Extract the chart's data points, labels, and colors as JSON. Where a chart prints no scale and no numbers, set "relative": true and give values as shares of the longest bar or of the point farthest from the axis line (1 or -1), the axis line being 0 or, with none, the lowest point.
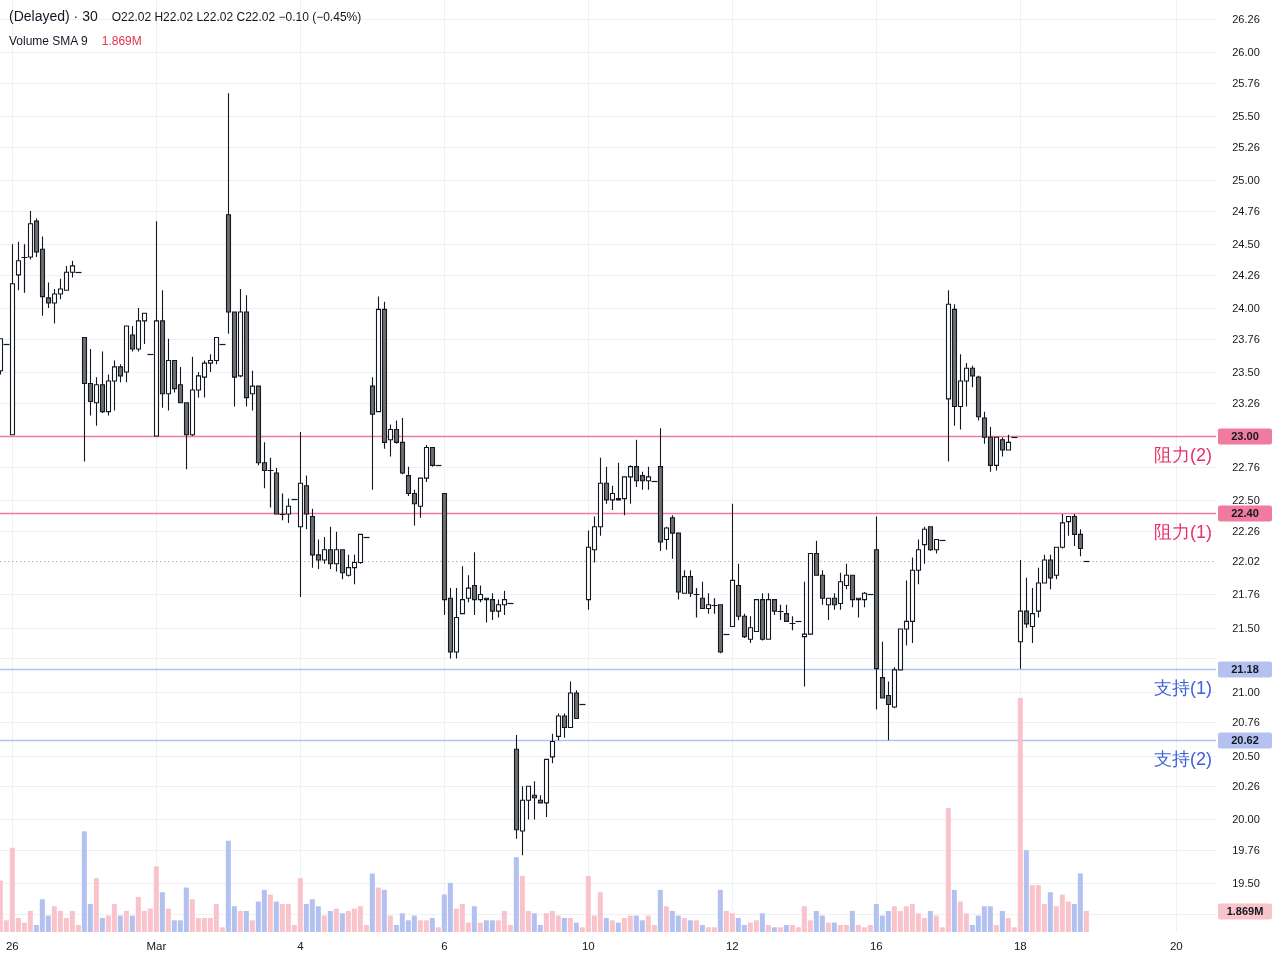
{
  "chart_data": [
    {
      "type": "candlestick",
      "title": "(Delayed) · 30",
      "annotations": [
        "O22.02 H22.02 L22.02 C22.02 −0.10 (−0.45%)",
        "23.00",
        "22.40",
        "21.18",
        "20.62"
      ],
      "categories": [
        null,
        null,
        "26",
        null,
        null,
        null,
        null,
        null,
        null,
        null,
        null,
        null,
        null,
        null,
        null,
        null,
        null,
        null,
        null,
        null,
        null,
        null,
        null,
        null,
        null,
        null,
        "Mar",
        null,
        null,
        null,
        null,
        null,
        null,
        null,
        null,
        null,
        null,
        null,
        null,
        null,
        null,
        null,
        null,
        null,
        null,
        null,
        null,
        null,
        null,
        null,
        "4",
        null,
        null,
        null,
        null,
        null,
        null,
        null,
        null,
        null,
        null,
        null,
        null,
        null,
        null,
        null,
        null,
        null,
        null,
        null,
        null,
        null,
        null,
        null,
        "6",
        null,
        null,
        null,
        null,
        null,
        null,
        null,
        null,
        null,
        null,
        null,
        null,
        null,
        null,
        null,
        null,
        null,
        null,
        null,
        null,
        null,
        null,
        null,
        "10",
        null,
        null,
        null,
        null,
        null,
        null,
        null,
        null,
        null,
        null,
        null,
        null,
        null,
        null,
        null,
        null,
        null,
        null,
        null,
        null,
        null,
        null,
        null,
        "12",
        null,
        null,
        null,
        null,
        null,
        null,
        null,
        null,
        null,
        null,
        null,
        null,
        null,
        null,
        null,
        null,
        null,
        null,
        null,
        null,
        null,
        null,
        null,
        "16",
        null,
        null,
        null,
        null,
        null,
        null,
        null,
        null,
        null,
        null,
        null,
        null,
        null,
        null,
        null,
        null,
        null,
        null,
        null,
        null,
        null,
        null,
        null,
        "18",
        null,
        null,
        null,
        null,
        null,
        null,
        null,
        null,
        null,
        null,
        null,
        null,
        null,
        null,
        null,
        null,
        null,
        null,
        null,
        null,
        null,
        null,
        null,
        null,
        null,
        "20",
        null,
        null,
        null,
        null,
        null,
        null
      ],
      "ohlc": [
        [
          23.51,
          23.76,
          23.48,
          23.76
        ],
        [
          23.72,
          23.72,
          23.72,
          23.72
        ],
        [
          23.01,
          24.5,
          23.01,
          24.19
        ],
        [
          24.26,
          24.52,
          24.14,
          24.37
        ],
        [
          24.4,
          24.5,
          24.12,
          24.4
        ],
        [
          24.4,
          24.76,
          24.38,
          24.66
        ],
        [
          24.68,
          24.7,
          24.4,
          24.44
        ],
        [
          24.46,
          24.56,
          23.94,
          24.09
        ],
        [
          24.08,
          24.2,
          24.0,
          24.04
        ],
        [
          24.04,
          24.15,
          23.88,
          24.11
        ],
        [
          24.11,
          24.23,
          24.07,
          24.15
        ],
        [
          24.14,
          24.33,
          24.14,
          24.28
        ],
        [
          24.28,
          24.37,
          24.24,
          24.33
        ],
        [
          24.28,
          24.28,
          24.28,
          24.28
        ],
        [
          23.77,
          23.77,
          22.8,
          23.41
        ],
        [
          23.41,
          23.68,
          23.16,
          23.27
        ],
        [
          23.26,
          23.46,
          23.08,
          23.4
        ],
        [
          23.4,
          23.66,
          23.18,
          23.19
        ],
        [
          23.19,
          23.48,
          23.16,
          23.43
        ],
        [
          23.43,
          23.59,
          23.2,
          23.54
        ],
        [
          23.54,
          23.56,
          23.42,
          23.47
        ],
        [
          23.5,
          23.86,
          23.42,
          23.86
        ],
        [
          23.79,
          23.86,
          23.66,
          23.68
        ],
        [
          23.68,
          24.0,
          23.66,
          23.9
        ],
        [
          23.9,
          23.96,
          23.72,
          23.96
        ],
        [
          23.64,
          23.64,
          23.64,
          23.64
        ],
        [
          23.0,
          24.68,
          23.0,
          23.9
        ],
        [
          23.9,
          24.14,
          23.22,
          23.33
        ],
        [
          23.33,
          23.76,
          23.2,
          23.59
        ],
        [
          23.59,
          23.59,
          23.34,
          23.37
        ],
        [
          23.4,
          23.54,
          23.26,
          23.26
        ],
        [
          23.26,
          23.26,
          22.74,
          23.01
        ],
        [
          23.01,
          23.62,
          23.0,
          23.36
        ],
        [
          23.36,
          23.5,
          23.3,
          23.47
        ],
        [
          23.46,
          23.59,
          23.3,
          23.57
        ],
        [
          23.57,
          23.64,
          23.5,
          23.59
        ],
        [
          23.59,
          23.77,
          23.56,
          23.77
        ],
        [
          23.72,
          23.72,
          23.72,
          23.72
        ],
        [
          24.73,
          25.68,
          23.8,
          23.97
        ],
        [
          23.97,
          23.97,
          23.23,
          23.46
        ],
        [
          23.47,
          24.15,
          23.46,
          23.97
        ],
        [
          23.97,
          24.1,
          23.23,
          23.3
        ],
        [
          23.33,
          23.51,
          23.2,
          23.39
        ],
        [
          23.39,
          23.39,
          22.77,
          22.79
        ],
        [
          22.79,
          22.95,
          22.59,
          22.73
        ],
        [
          22.73,
          22.83,
          22.44,
          22.73
        ],
        [
          22.71,
          22.75,
          22.39,
          22.39
        ],
        [
          22.39,
          22.55,
          22.34,
          22.39
        ],
        [
          22.39,
          22.51,
          22.32,
          22.45
        ],
        [
          22.51,
          22.51,
          22.51,
          22.51
        ],
        [
          22.29,
          23.03,
          21.74,
          22.63
        ],
        [
          22.61,
          22.69,
          22.27,
          22.39
        ],
        [
          22.37,
          22.43,
          21.97,
          22.07
        ],
        [
          22.07,
          22.19,
          21.96,
          22.03
        ],
        [
          22.03,
          22.21,
          22.0,
          22.11
        ],
        [
          22.11,
          22.29,
          21.96,
          22.0
        ],
        [
          22.0,
          22.25,
          21.94,
          22.11
        ],
        [
          22.11,
          22.11,
          21.88,
          21.93
        ],
        [
          21.91,
          22.07,
          21.9,
          21.97
        ],
        [
          21.97,
          22.07,
          21.84,
          22.01
        ],
        [
          22.01,
          22.23,
          22.0,
          22.23
        ],
        [
          22.21,
          22.21,
          22.21,
          22.21
        ],
        [
          23.39,
          23.46,
          22.58,
          23.17
        ],
        [
          23.19,
          24.09,
          23.19,
          23.99
        ],
        [
          23.99,
          24.05,
          22.9,
          22.95
        ],
        [
          22.97,
          23.09,
          22.84,
          23.05
        ],
        [
          23.05,
          23.12,
          22.94,
          22.95
        ],
        [
          22.95,
          23.14,
          22.7,
          22.71
        ],
        [
          22.69,
          22.76,
          22.53,
          22.55
        ],
        [
          22.55,
          22.58,
          22.3,
          22.47
        ],
        [
          22.45,
          22.67,
          22.36,
          22.67
        ],
        [
          22.67,
          22.93,
          22.64,
          22.91
        ],
        [
          22.91,
          22.91,
          22.76,
          22.77
        ],
        [
          22.77,
          22.77,
          22.77,
          22.77
        ],
        [
          22.55,
          22.55,
          21.6,
          21.72
        ],
        [
          21.73,
          21.81,
          21.26,
          21.31
        ],
        [
          21.31,
          21.81,
          21.26,
          21.58
        ],
        [
          21.61,
          21.98,
          21.61,
          21.72
        ],
        [
          21.73,
          21.91,
          21.7,
          21.81
        ],
        [
          21.83,
          22.09,
          21.6,
          21.72
        ],
        [
          21.72,
          21.83,
          21.7,
          21.76
        ],
        [
          21.73,
          21.73,
          21.54,
          21.72
        ],
        [
          21.72,
          21.77,
          21.56,
          21.63
        ],
        [
          21.63,
          21.72,
          21.58,
          21.68
        ],
        [
          21.68,
          21.79,
          21.6,
          21.72
        ],
        [
          21.69,
          21.69,
          21.69,
          21.69
        ],
        [
          20.55,
          20.66,
          19.85,
          19.92
        ],
        [
          19.91,
          20.26,
          19.72,
          20.15
        ],
        [
          20.15,
          20.26,
          20.0,
          20.26
        ],
        [
          20.19,
          20.3,
          20.0,
          20.17
        ],
        [
          20.15,
          20.19,
          20.13,
          20.13
        ],
        [
          20.13,
          20.47,
          20.02,
          20.47
        ],
        [
          20.49,
          20.67,
          20.44,
          20.61
        ],
        [
          20.65,
          20.83,
          20.62,
          20.81
        ],
        [
          20.81,
          20.83,
          20.64,
          20.72
        ],
        [
          20.72,
          21.08,
          20.72,
          20.99
        ],
        [
          20.99,
          21.01,
          20.79,
          20.79
        ],
        [
          20.9,
          20.9,
          20.9,
          20.9
        ],
        [
          21.72,
          22.26,
          21.64,
          22.13
        ],
        [
          22.11,
          22.37,
          22.01,
          22.29
        ],
        [
          22.29,
          22.83,
          22.22,
          22.63
        ],
        [
          22.63,
          22.76,
          22.47,
          22.5
        ],
        [
          22.5,
          22.61,
          22.42,
          22.55
        ],
        [
          22.51,
          22.79,
          22.5,
          22.5
        ],
        [
          22.51,
          22.68,
          22.38,
          22.68
        ],
        [
          22.68,
          22.77,
          22.47,
          22.76
        ],
        [
          22.76,
          22.97,
          22.6,
          22.65
        ],
        [
          22.69,
          22.72,
          22.58,
          22.65
        ],
        [
          22.65,
          22.76,
          22.58,
          22.68
        ],
        [
          22.65,
          22.65,
          22.65,
          22.65
        ],
        [
          22.76,
          23.06,
          22.1,
          22.17
        ],
        [
          22.19,
          22.29,
          22.11,
          22.28
        ],
        [
          22.36,
          22.38,
          22.04,
          22.24
        ],
        [
          22.24,
          22.24,
          21.72,
          21.78
        ],
        [
          21.77,
          21.95,
          21.77,
          21.9
        ],
        [
          21.9,
          21.95,
          21.74,
          21.77
        ],
        [
          21.76,
          21.81,
          21.58,
          21.76
        ],
        [
          21.73,
          21.86,
          21.65,
          21.65
        ],
        [
          21.65,
          21.77,
          21.61,
          21.68
        ],
        [
          21.68,
          21.73,
          21.61,
          21.68
        ],
        [
          21.68,
          21.68,
          21.3,
          21.31
        ],
        [
          21.45,
          21.45,
          21.45,
          21.45
        ],
        [
          21.51,
          22.47,
          21.51,
          21.87
        ],
        [
          21.83,
          22.0,
          21.56,
          21.59
        ],
        [
          21.59,
          21.61,
          21.42,
          21.43
        ],
        [
          21.41,
          21.59,
          21.38,
          21.5
        ],
        [
          21.47,
          21.72,
          21.47,
          21.72
        ],
        [
          21.72,
          21.77,
          21.4,
          21.41
        ],
        [
          21.41,
          21.77,
          21.41,
          21.72
        ],
        [
          21.72,
          21.72,
          21.6,
          21.63
        ],
        [
          21.63,
          21.68,
          21.56,
          21.63
        ],
        [
          21.61,
          21.68,
          21.55,
          21.55
        ],
        [
          21.54,
          21.59,
          21.48,
          21.54
        ],
        [
          21.55,
          21.55,
          21.55,
          21.55
        ],
        [
          21.43,
          21.86,
          21.04,
          21.45
        ],
        [
          21.45,
          22.08,
          21.45,
          22.08
        ],
        [
          22.08,
          22.18,
          21.91,
          21.91
        ],
        [
          21.91,
          21.95,
          21.68,
          21.73
        ],
        [
          21.68,
          21.73,
          21.56,
          21.73
        ],
        [
          21.73,
          21.77,
          21.64,
          21.68
        ],
        [
          21.69,
          21.93,
          21.64,
          21.86
        ],
        [
          21.83,
          22.0,
          21.8,
          21.91
        ],
        [
          21.91,
          21.91,
          21.66,
          21.72
        ],
        [
          21.72,
          21.73,
          21.58,
          21.73
        ],
        [
          21.72,
          21.78,
          21.66,
          21.77
        ],
        [
          21.76,
          21.76,
          21.76,
          21.76
        ],
        [
          22.11,
          22.37,
          20.86,
          21.18
        ],
        [
          21.11,
          21.39,
          20.95,
          20.95
        ],
        [
          20.97,
          21.08,
          20.62,
          20.9
        ],
        [
          20.88,
          21.19,
          20.87,
          21.17
        ],
        [
          21.17,
          21.49,
          21.17,
          21.49
        ],
        [
          21.49,
          21.87,
          21.36,
          21.55
        ],
        [
          21.55,
          22.05,
          21.38,
          21.95
        ],
        [
          21.95,
          22.19,
          21.84,
          22.11
        ],
        [
          22.15,
          22.29,
          22.0,
          22.27
        ],
        [
          22.29,
          22.29,
          22.1,
          22.11
        ],
        [
          22.11,
          22.19,
          22.08,
          22.19
        ],
        [
          22.19,
          22.19,
          22.19,
          22.19
        ],
        [
          23.29,
          24.14,
          22.8,
          24.03
        ],
        [
          23.99,
          24.03,
          23.08,
          23.23
        ],
        [
          23.23,
          23.64,
          23.05,
          23.43
        ],
        [
          23.43,
          23.57,
          23.23,
          23.53
        ],
        [
          23.53,
          23.55,
          23.38,
          23.47
        ],
        [
          23.46,
          23.47,
          23.12,
          23.15
        ],
        [
          23.14,
          23.19,
          22.94,
          22.99
        ],
        [
          22.99,
          23.07,
          22.72,
          22.77
        ],
        [
          22.77,
          22.99,
          22.73,
          22.99
        ],
        [
          22.97,
          22.99,
          22.84,
          22.89
        ],
        [
          22.89,
          23.01,
          22.89,
          22.95
        ],
        [
          22.99,
          22.99,
          22.99,
          22.99
        ],
        [
          21.39,
          22.03,
          21.18,
          21.63
        ],
        [
          21.63,
          21.89,
          21.5,
          21.53
        ],
        [
          21.51,
          21.81,
          21.38,
          21.61
        ],
        [
          21.63,
          21.97,
          21.58,
          21.85
        ],
        [
          21.85,
          22.07,
          21.85,
          22.03
        ],
        [
          22.03,
          22.07,
          21.8,
          21.89
        ],
        [
          21.91,
          22.13,
          21.88,
          22.13
        ],
        [
          22.13,
          22.39,
          22.12,
          22.32
        ],
        [
          22.33,
          22.37,
          22.22,
          22.37
        ],
        [
          22.37,
          22.39,
          22.14,
          22.23
        ],
        [
          22.23,
          22.27,
          22.06,
          22.12
        ],
        [
          22.02,
          22.02,
          22.02,
          22.02
        ],
        null,
        null,
        null,
        null,
        null,
        null,
        null,
        null,
        null,
        null,
        null,
        null,
        null,
        null,
        null,
        null,
        null,
        null,
        null,
        null,
        null
      ],
      "ylim": [
        19.12,
        26.41
      ],
      "yticks": [
        26.26,
        {
          "value": 26,
          "label": "26.00"
        },
        25.76,
        {
          "value": 25.5,
          "label": "25.50"
        },
        25.26,
        {
          "value": 25,
          "label": "25.00"
        },
        24.76,
        {
          "value": 24.5,
          "label": "24.50"
        },
        24.26,
        {
          "value": 24,
          "label": "24.00"
        },
        23.76,
        {
          "value": 23.5,
          "label": "23.50"
        },
        23.26,
        22.76,
        {
          "value": 22.5,
          "label": "22.50"
        },
        22.26,
        22.02,
        21.76,
        {
          "value": 21.5,
          "label": "21.50"
        },
        {
          "value": 21.26,
          "label": null
        },
        {
          "value": 21,
          "label": "21.00"
        },
        20.76,
        {
          "value": 20.5,
          "label": "20.50"
        },
        20.26,
        {
          "value": 20,
          "label": "20.00"
        },
        19.76,
        {
          "value": 19.5,
          "label": "19.50"
        },
        {
          "value": 19.26,
          "label": null
        }
      ],
      "grid": true,
      "ref_lines": [
        {
          "axis": "y",
          "value": 23.0,
          "label": "阻力(2)",
          "color": "#f07b9e"
        },
        {
          "axis": "y",
          "value": 22.4,
          "label": "阻力(1)",
          "color": "#f07b9e"
        },
        {
          "axis": "y",
          "value": 21.18,
          "label": "支持(1)",
          "color": "#b5c2f0"
        },
        {
          "axis": "y",
          "value": 20.62,
          "label": "支持(2)",
          "color": "#b5c2f0"
        },
        {
          "axis": "y",
          "value": 22.02,
          "color": "#b2b5be",
          "line_style": "dotted"
        }
      ]
    },
    {
      "type": "bar",
      "title": "Volume SMA 9",
      "annotations": [
        "1.869M",
        "1.869M"
      ],
      "relative": true,
      "categories": [
        null,
        null,
        null,
        null,
        null,
        null,
        null,
        null,
        null,
        null,
        null,
        null,
        null,
        null,
        null,
        null,
        null,
        null,
        null,
        null,
        null,
        null,
        null,
        null,
        null,
        null,
        null,
        null,
        null,
        null,
        null,
        null,
        null,
        null,
        null,
        null,
        null,
        null,
        null,
        null,
        null,
        null,
        null,
        null,
        null,
        null,
        null,
        null,
        null,
        null,
        null,
        null,
        null,
        null,
        null,
        null,
        null,
        null,
        null,
        null,
        null,
        null,
        null,
        null,
        null,
        null,
        null,
        null,
        null,
        null,
        null,
        null,
        null,
        null,
        null,
        null,
        null,
        null,
        null,
        null,
        null,
        null,
        null,
        null,
        null,
        null,
        null,
        null,
        null,
        null,
        null,
        null,
        null,
        null,
        null,
        null,
        null,
        null,
        null,
        null,
        null,
        null,
        null,
        null,
        null,
        null,
        null,
        null,
        null,
        null,
        null,
        null,
        null,
        null,
        null,
        null,
        null,
        null,
        null,
        null,
        null,
        null,
        null,
        null,
        null,
        null,
        null,
        null,
        null,
        null,
        null,
        null,
        null,
        null,
        null,
        null,
        null,
        null,
        null,
        null,
        null,
        null,
        null,
        null,
        null,
        null,
        null,
        null,
        null,
        null,
        null,
        null,
        null,
        null,
        null,
        null,
        null,
        null,
        null,
        null,
        null,
        null,
        null,
        null,
        null,
        null,
        null,
        null,
        null,
        null,
        null,
        null,
        null,
        null,
        null,
        null,
        null,
        null,
        null,
        null,
        null,
        null,
        null,
        null,
        null,
        null,
        null,
        null,
        null,
        null,
        null,
        null,
        null,
        null,
        null,
        null,
        null,
        null,
        null,
        null,
        null,
        null,
        null
      ],
      "values": [
        0.22,
        0.05,
        0.36,
        0.06,
        0.04,
        0.09,
        0.03,
        0.14,
        0.07,
        0.11,
        0.09,
        0.06,
        0.09,
        0.03,
        0.43,
        0.12,
        0.23,
        0.06,
        0.07,
        0.12,
        0.07,
        0.09,
        0.07,
        0.15,
        0.09,
        0.1,
        0.28,
        0.17,
        0.1,
        0.05,
        0.05,
        0.19,
        0.14,
        0.06,
        0.06,
        0.06,
        0.12,
        0.02,
        0.39,
        0.11,
        0.09,
        0.09,
        0.05,
        0.13,
        0.18,
        0.16,
        0.13,
        0.12,
        0.12,
        0.03,
        0.23,
        0.12,
        0.14,
        0.11,
        0.07,
        0.09,
        0.1,
        0.08,
        0.09,
        0.1,
        0.11,
        0.03,
        0.25,
        0.19,
        0.18,
        0.07,
        0.03,
        0.08,
        0.05,
        0.07,
        0.05,
        0.05,
        0.06,
        0.02,
        0.16,
        0.21,
        0.1,
        0.12,
        0.04,
        0.11,
        0.04,
        0.05,
        0.05,
        0.05,
        0.09,
        0.03,
        0.32,
        0.24,
        0.09,
        0.08,
        0.03,
        0.08,
        0.09,
        0.07,
        0.06,
        0.06,
        0.04,
        0.02,
        0.24,
        0.07,
        0.17,
        0.06,
        0.05,
        0.04,
        0.06,
        0.07,
        0.07,
        0.05,
        0.07,
        0.03,
        0.18,
        0.11,
        0.09,
        0.07,
        0.06,
        0.05,
        0.05,
        0.03,
        0.02,
        0.02,
        0.18,
        0.09,
        0.08,
        0.06,
        0.03,
        0.04,
        0.05,
        0.08,
        0.03,
        0.02,
        0.02,
        0.03,
        0.03,
        0.02,
        0.11,
        0.05,
        0.09,
        0.07,
        0.04,
        0.04,
        0.03,
        0.03,
        0.09,
        0.03,
        0.02,
        0.03,
        0.12,
        0.07,
        0.09,
        0.11,
        0.09,
        0.11,
        0.12,
        0.08,
        0.06,
        0.09,
        0.07,
        0.02,
        0.53,
        0.18,
        0.13,
        0.08,
        0.03,
        0.07,
        0.11,
        0.11,
        0.03,
        0.09,
        0.06,
        0.02,
        1,
        0.35,
        0.2,
        0.2,
        0.12,
        0.17,
        0.11,
        0.16,
        0.13,
        0.12,
        0.25,
        0.09,
        null,
        null,
        null,
        null,
        null,
        null,
        null,
        null,
        null,
        null,
        null,
        null,
        null,
        null,
        null,
        null,
        null,
        null,
        null,
        null,
        null
      ],
      "colors": [
        "#f8c3ca",
        "#f8c3ca",
        "#f8c3ca",
        "#f8c3ca",
        "#f8c3ca",
        "#f8c3ca",
        "#b2c1f0",
        "#b2c1f0",
        "#b2c1f0",
        "#f8c3ca",
        "#f8c3ca",
        "#f8c3ca",
        "#f8c3ca",
        "#f8c3ca",
        "#b2c1f0",
        "#b2c1f0",
        "#f8c3ca",
        "#b2c1f0",
        "#f8c3ca",
        "#f8c3ca",
        "#b2c1f0",
        "#f8c3ca",
        "#b2c1f0",
        "#f8c3ca",
        "#f8c3ca",
        "#f8c3ca",
        "#f8c3ca",
        "#b2c1f0",
        "#f8c3ca",
        "#b2c1f0",
        "#b2c1f0",
        "#b2c1f0",
        "#f8c3ca",
        "#f8c3ca",
        "#f8c3ca",
        "#f8c3ca",
        "#f8c3ca",
        "#f8c3ca",
        "#b2c1f0",
        "#b2c1f0",
        "#f8c3ca",
        "#b2c1f0",
        "#f8c3ca",
        "#b2c1f0",
        "#b2c1f0",
        "#f8c3ca",
        "#b2c1f0",
        "#f8c3ca",
        "#f8c3ca",
        "#f8c3ca",
        "#f8c3ca",
        "#b2c1f0",
        "#b2c1f0",
        "#b2c1f0",
        "#f8c3ca",
        "#b2c1f0",
        "#f8c3ca",
        "#b2c1f0",
        "#f8c3ca",
        "#f8c3ca",
        "#f8c3ca",
        "#f8c3ca",
        "#b2c1f0",
        "#f8c3ca",
        "#b2c1f0",
        "#f8c3ca",
        "#b2c1f0",
        "#b2c1f0",
        "#b2c1f0",
        "#b2c1f0",
        "#f8c3ca",
        "#f8c3ca",
        "#b2c1f0",
        "#f8c3ca",
        "#b2c1f0",
        "#b2c1f0",
        "#f8c3ca",
        "#f8c3ca",
        "#f8c3ca",
        "#b2c1f0",
        "#f8c3ca",
        "#b2c1f0",
        "#b2c1f0",
        "#f8c3ca",
        "#f8c3ca",
        "#f8c3ca",
        "#b2c1f0",
        "#f8c3ca",
        "#f8c3ca",
        "#b2c1f0",
        "#b2c1f0",
        "#f8c3ca",
        "#f8c3ca",
        "#f8c3ca",
        "#b2c1f0",
        "#f8c3ca",
        "#b2c1f0",
        "#f8c3ca",
        "#f8c3ca",
        "#f8c3ca",
        "#f8c3ca",
        "#b2c1f0",
        "#f8c3ca",
        "#b2c1f0",
        "#f8c3ca",
        "#f8c3ca",
        "#b2c1f0",
        "#b2c1f0",
        "#f8c3ca",
        "#f8c3ca",
        "#b2c1f0",
        "#f8c3ca",
        "#b2c1f0",
        "#b2c1f0",
        "#f8c3ca",
        "#b2c1f0",
        "#f8c3ca",
        "#b2c1f0",
        "#f8c3ca",
        "#f8c3ca",
        "#b2c1f0",
        "#f8c3ca",
        "#f8c3ca",
        "#b2c1f0",
        "#b2c1f0",
        "#f8c3ca",
        "#f8c3ca",
        "#b2c1f0",
        "#f8c3ca",
        "#b2c1f0",
        "#f8c3ca",
        "#b2c1f0",
        "#f8c3ca",
        "#f8c3ca",
        "#f8c3ca",
        "#f8c3ca",
        "#b2c1f0",
        "#b2c1f0",
        "#f8c3ca",
        "#b2c1f0",
        "#f8c3ca",
        "#f8c3ca",
        "#b2c1f0",
        "#f8c3ca",
        "#f8c3ca",
        "#f8c3ca",
        "#b2c1f0",
        "#b2c1f0",
        "#b2c1f0",
        "#f8c3ca",
        "#f8c3ca",
        "#f8c3ca",
        "#f8c3ca",
        "#f8c3ca",
        "#f8c3ca",
        "#b2c1f0",
        "#f8c3ca",
        "#f8c3ca",
        "#f8c3ca",
        "#b2c1f0",
        "#f8c3ca",
        "#f8c3ca",
        "#b2c1f0",
        "#b2c1f0",
        "#b2c1f0",
        "#b2c1f0",
        "#f8c3ca",
        "#b2c1f0",
        "#f8c3ca",
        "#f8c3ca",
        "#f8c3ca",
        "#b2c1f0",
        "#f8c3ca",
        "#f8c3ca",
        "#f8c3ca",
        "#b2c1f0",
        "#f8c3ca",
        "#f8c3ca",
        "#f8c3ca",
        "#b2c1f0",
        "#b2c1f0",
        "#f8c3ca",
        null,
        null,
        null,
        null,
        null,
        null,
        null,
        null,
        null,
        null,
        null,
        null,
        null,
        null,
        null,
        null,
        null,
        null,
        null,
        null,
        null
      ]
    }
  ]
}
